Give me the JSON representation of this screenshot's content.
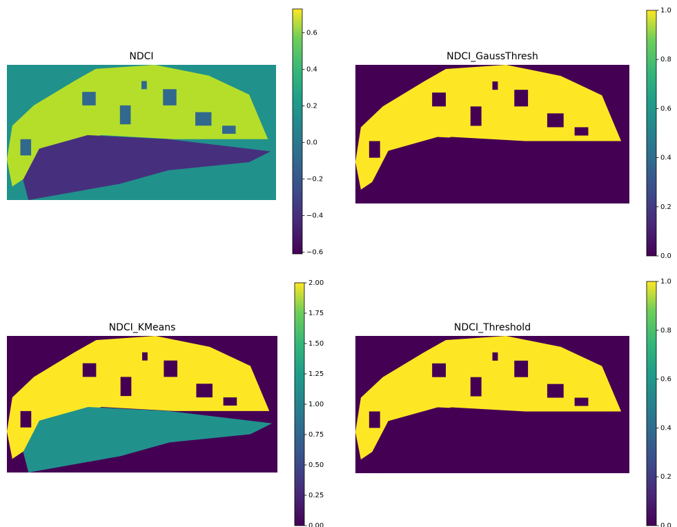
{
  "chart_data": [
    {
      "type": "image",
      "title": "NDCI",
      "colormap": "viridis",
      "clim": [
        -0.61,
        0.73
      ],
      "cticks": [
        {
          "value": -0.6,
          "label": "−0.6"
        },
        {
          "value": -0.4,
          "label": "−0.4"
        },
        {
          "value": -0.2,
          "label": "−0.2"
        },
        {
          "value": 0,
          "label": "0.0"
        },
        0.2,
        0.4,
        0.6
      ]
    },
    {
      "type": "image",
      "title": "NDCI_GaussThresh",
      "colormap": "viridis",
      "clim": [
        0,
        1
      ],
      "cticks": [
        {
          "value": 0,
          "label": "0.0"
        },
        0.2,
        0.4,
        0.6,
        0.8,
        {
          "value": 1,
          "label": "1.0"
        }
      ]
    },
    {
      "type": "image",
      "title": "NDCI_KMeans",
      "colormap": "viridis",
      "clim": [
        0,
        2
      ],
      "cticks": [
        {
          "value": 0,
          "label": "0.00"
        },
        0.25,
        {
          "value": 0.5,
          "label": "0.50"
        },
        0.75,
        {
          "value": 1,
          "label": "1.00"
        },
        1.25,
        {
          "value": 1.5,
          "label": "1.50"
        },
        1.75,
        {
          "value": 2,
          "label": "2.00"
        }
      ]
    },
    {
      "type": "image",
      "title": "NDCI_Threshold",
      "colormap": "viridis",
      "clim": [
        0,
        1
      ],
      "cticks": [
        {
          "value": 0,
          "label": "0.0"
        },
        0.2,
        0.4,
        0.6,
        0.8,
        {
          "value": 1,
          "label": "1.0"
        }
      ]
    }
  ]
}
